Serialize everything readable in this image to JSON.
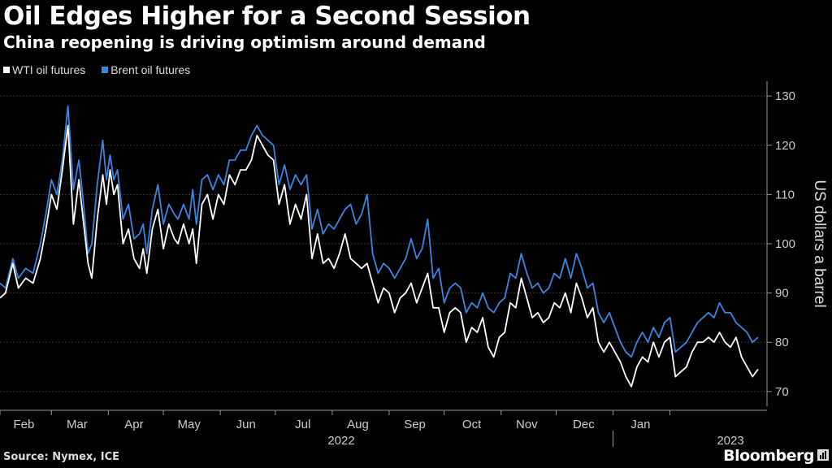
{
  "header": {
    "title": "Oil Edges Higher for a Second Session",
    "subtitle": "China reopening is driving optimism around demand"
  },
  "footer": {
    "source": "Source: Nymex, ICE",
    "brand": "Bloomberg"
  },
  "colors": {
    "wti": "#ffffff",
    "brent": "#3a85e0",
    "grid": "#3a3a3a"
  },
  "chart_data": {
    "type": "line",
    "title": "Oil Edges Higher for a Second Session",
    "subtitle": "China reopening is driving optimism around demand",
    "xlabel": "",
    "ylabel": "US dollars a barrel",
    "ylim": [
      67,
      133
    ],
    "yticks": [
      70,
      80,
      90,
      100,
      110,
      120,
      130
    ],
    "x_range": [
      "2022-02-01",
      "2023-01-25"
    ],
    "month_ticks": [
      "Feb",
      "Mar",
      "Apr",
      "May",
      "Jun",
      "Jul",
      "Aug",
      "Sep",
      "Oct",
      "Nov",
      "Dec",
      "Jan"
    ],
    "year_labels": [
      "2022",
      "2023"
    ],
    "legend": [
      "WTI oil futures",
      "Brent oil futures"
    ],
    "series": [
      {
        "name": "WTI oil futures",
        "values": [
          [
            0,
            89
          ],
          [
            3,
            90
          ],
          [
            7,
            96
          ],
          [
            10,
            91
          ],
          [
            14,
            93
          ],
          [
            18,
            92
          ],
          [
            22,
            97
          ],
          [
            25,
            103
          ],
          [
            28,
            110
          ],
          [
            31,
            107
          ],
          [
            34,
            115
          ],
          [
            37,
            124
          ],
          [
            40,
            104
          ],
          [
            43,
            113
          ],
          [
            45,
            106
          ],
          [
            48,
            96
          ],
          [
            50,
            93
          ],
          [
            53,
            105
          ],
          [
            56,
            114
          ],
          [
            58,
            108
          ],
          [
            60,
            115
          ],
          [
            62,
            110
          ],
          [
            64,
            112
          ],
          [
            67,
            100
          ],
          [
            70,
            103
          ],
          [
            73,
            97
          ],
          [
            76,
            95
          ],
          [
            78,
            99
          ],
          [
            80,
            94
          ],
          [
            83,
            103
          ],
          [
            86,
            107
          ],
          [
            89,
            99
          ],
          [
            92,
            104
          ],
          [
            95,
            101
          ],
          [
            97,
            100
          ],
          [
            100,
            104
          ],
          [
            103,
            100
          ],
          [
            105,
            103
          ],
          [
            107,
            96
          ],
          [
            110,
            108
          ],
          [
            113,
            110
          ],
          [
            116,
            105
          ],
          [
            119,
            110
          ],
          [
            122,
            108
          ],
          [
            125,
            114
          ],
          [
            128,
            112
          ],
          [
            131,
            115
          ],
          [
            134,
            115
          ],
          [
            137,
            117
          ],
          [
            140,
            122
          ],
          [
            143,
            120
          ],
          [
            146,
            118
          ],
          [
            149,
            117
          ],
          [
            152,
            108
          ],
          [
            155,
            112
          ],
          [
            158,
            104
          ],
          [
            161,
            108
          ],
          [
            164,
            105
          ],
          [
            167,
            110
          ],
          [
            170,
            97
          ],
          [
            173,
            102
          ],
          [
            176,
            96
          ],
          [
            179,
            97
          ],
          [
            182,
            95
          ],
          [
            185,
            98
          ],
          [
            188,
            102
          ],
          [
            191,
            97
          ],
          [
            194,
            96
          ],
          [
            197,
            95
          ],
          [
            200,
            96
          ],
          [
            203,
            92
          ],
          [
            206,
            88
          ],
          [
            209,
            91
          ],
          [
            212,
            90
          ],
          [
            215,
            86
          ],
          [
            218,
            89
          ],
          [
            221,
            90
          ],
          [
            224,
            92
          ],
          [
            227,
            88
          ],
          [
            230,
            91
          ],
          [
            233,
            94
          ],
          [
            236,
            87
          ],
          [
            239,
            87
          ],
          [
            242,
            82
          ],
          [
            245,
            86
          ],
          [
            248,
            87
          ],
          [
            251,
            86
          ],
          [
            254,
            80
          ],
          [
            257,
            83
          ],
          [
            260,
            82
          ],
          [
            263,
            85
          ],
          [
            266,
            79
          ],
          [
            269,
            77
          ],
          [
            272,
            81
          ],
          [
            275,
            82
          ],
          [
            278,
            88
          ],
          [
            281,
            87
          ],
          [
            284,
            93
          ],
          [
            287,
            89
          ],
          [
            290,
            85
          ],
          [
            293,
            86
          ],
          [
            296,
            84
          ],
          [
            299,
            85
          ],
          [
            302,
            88
          ],
          [
            305,
            87
          ],
          [
            308,
            90
          ],
          [
            311,
            86
          ],
          [
            314,
            92
          ],
          [
            317,
            89
          ],
          [
            320,
            85
          ],
          [
            323,
            87
          ],
          [
            326,
            80
          ],
          [
            329,
            78
          ],
          [
            332,
            80
          ],
          [
            335,
            78
          ],
          [
            338,
            76
          ],
          [
            341,
            73
          ],
          [
            344,
            71
          ],
          [
            347,
            75
          ],
          [
            350,
            77
          ],
          [
            353,
            76
          ],
          [
            356,
            80
          ],
          [
            359,
            77
          ],
          [
            362,
            80
          ],
          [
            365,
            81
          ],
          [
            368,
            73
          ],
          [
            371,
            74
          ],
          [
            374,
            75
          ],
          [
            377,
            78
          ],
          [
            380,
            80
          ],
          [
            383,
            80
          ],
          [
            386,
            81
          ],
          [
            389,
            80
          ],
          [
            392,
            82
          ],
          [
            395,
            80
          ],
          [
            398,
            79
          ],
          [
            401,
            81
          ],
          [
            404,
            77
          ],
          [
            407,
            75
          ],
          [
            410,
            73
          ],
          [
            413,
            74.5
          ]
        ]
      },
      {
        "name": "Brent oil futures",
        "values": [
          [
            0,
            92
          ],
          [
            3,
            91
          ],
          [
            7,
            97
          ],
          [
            10,
            93
          ],
          [
            14,
            95
          ],
          [
            18,
            94
          ],
          [
            22,
            100
          ],
          [
            25,
            106
          ],
          [
            28,
            113
          ],
          [
            31,
            110
          ],
          [
            34,
            117
          ],
          [
            37,
            128
          ],
          [
            40,
            111
          ],
          [
            43,
            117
          ],
          [
            45,
            110
          ],
          [
            48,
            98
          ],
          [
            50,
            100
          ],
          [
            53,
            112
          ],
          [
            56,
            121
          ],
          [
            58,
            113
          ],
          [
            60,
            118
          ],
          [
            62,
            113
          ],
          [
            64,
            115
          ],
          [
            67,
            105
          ],
          [
            70,
            108
          ],
          [
            73,
            101
          ],
          [
            76,
            102
          ],
          [
            78,
            104
          ],
          [
            80,
            98
          ],
          [
            83,
            107
          ],
          [
            86,
            112
          ],
          [
            89,
            104
          ],
          [
            92,
            108
          ],
          [
            95,
            106
          ],
          [
            97,
            105
          ],
          [
            100,
            108
          ],
          [
            103,
            105
          ],
          [
            105,
            111
          ],
          [
            107,
            104
          ],
          [
            110,
            113
          ],
          [
            113,
            114
          ],
          [
            116,
            111
          ],
          [
            119,
            114
          ],
          [
            122,
            112
          ],
          [
            125,
            117
          ],
          [
            128,
            117
          ],
          [
            131,
            119
          ],
          [
            134,
            119
          ],
          [
            137,
            122
          ],
          [
            140,
            124
          ],
          [
            143,
            122
          ],
          [
            146,
            121
          ],
          [
            149,
            120
          ],
          [
            152,
            112
          ],
          [
            155,
            116
          ],
          [
            158,
            111
          ],
          [
            161,
            114
          ],
          [
            164,
            112
          ],
          [
            167,
            114
          ],
          [
            170,
            103
          ],
          [
            173,
            107
          ],
          [
            176,
            102
          ],
          [
            179,
            104
          ],
          [
            182,
            103
          ],
          [
            185,
            105
          ],
          [
            188,
            107
          ],
          [
            191,
            108
          ],
          [
            194,
            104
          ],
          [
            197,
            106
          ],
          [
            200,
            110
          ],
          [
            203,
            98
          ],
          [
            206,
            94
          ],
          [
            209,
            96
          ],
          [
            212,
            95
          ],
          [
            215,
            93
          ],
          [
            218,
            95
          ],
          [
            221,
            97
          ],
          [
            224,
            101
          ],
          [
            227,
            97
          ],
          [
            230,
            99
          ],
          [
            233,
            105
          ],
          [
            236,
            93
          ],
          [
            239,
            95
          ],
          [
            242,
            88
          ],
          [
            245,
            91
          ],
          [
            248,
            92
          ],
          [
            251,
            91
          ],
          [
            254,
            86
          ],
          [
            257,
            88
          ],
          [
            260,
            87
          ],
          [
            263,
            90
          ],
          [
            266,
            87
          ],
          [
            269,
            86
          ],
          [
            272,
            88
          ],
          [
            275,
            89
          ],
          [
            278,
            94
          ],
          [
            281,
            93
          ],
          [
            284,
            98
          ],
          [
            287,
            94
          ],
          [
            290,
            91
          ],
          [
            293,
            92
          ],
          [
            296,
            90
          ],
          [
            299,
            91
          ],
          [
            302,
            94
          ],
          [
            305,
            93
          ],
          [
            308,
            97
          ],
          [
            311,
            93
          ],
          [
            314,
            98
          ],
          [
            317,
            95
          ],
          [
            320,
            91
          ],
          [
            323,
            92
          ],
          [
            326,
            86
          ],
          [
            329,
            84
          ],
          [
            332,
            86
          ],
          [
            335,
            83
          ],
          [
            338,
            80
          ],
          [
            341,
            78
          ],
          [
            344,
            77
          ],
          [
            347,
            80
          ],
          [
            350,
            82
          ],
          [
            353,
            80
          ],
          [
            356,
            83
          ],
          [
            359,
            81
          ],
          [
            362,
            84
          ],
          [
            365,
            85
          ],
          [
            368,
            78
          ],
          [
            371,
            79
          ],
          [
            374,
            80
          ],
          [
            377,
            82
          ],
          [
            380,
            84
          ],
          [
            383,
            85
          ],
          [
            386,
            86
          ],
          [
            389,
            85
          ],
          [
            392,
            88
          ],
          [
            395,
            86
          ],
          [
            398,
            86
          ],
          [
            401,
            84
          ],
          [
            404,
            83
          ],
          [
            407,
            82
          ],
          [
            410,
            80
          ],
          [
            413,
            81
          ]
        ]
      }
    ]
  }
}
